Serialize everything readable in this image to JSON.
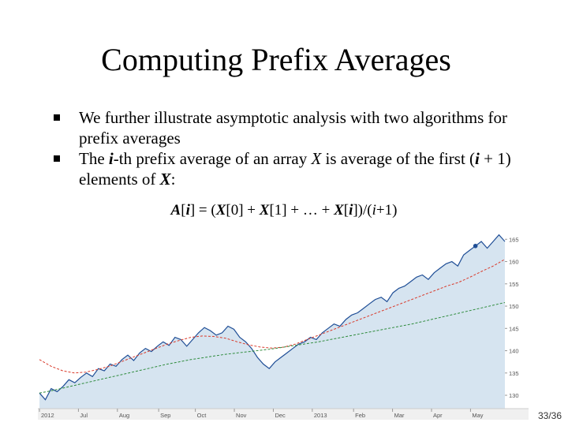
{
  "slide": {
    "title": "Computing Prefix Averages",
    "bullets": [
      {
        "parts": [
          {
            "t": "We further illustrate asymptotic analysis with two algorithms for prefix averages",
            "s": "n"
          }
        ]
      },
      {
        "parts": [
          {
            "t": "The ",
            "s": "n"
          },
          {
            "t": "i",
            "s": "bi"
          },
          {
            "t": "-th prefix average of an array ",
            "s": "n"
          },
          {
            "t": "X",
            "s": "i"
          },
          {
            "t": " is average of the first (",
            "s": "n"
          },
          {
            "t": "i",
            "s": "bi"
          },
          {
            "t": " + 1) elements of ",
            "s": "n"
          },
          {
            "t": "X",
            "s": "bi"
          },
          {
            "t": ":",
            "s": "n"
          }
        ]
      }
    ],
    "formula": [
      {
        "t": "A",
        "s": "bi"
      },
      {
        "t": "[",
        "s": "n"
      },
      {
        "t": "i",
        "s": "bi"
      },
      {
        "t": "] = (",
        "s": "n"
      },
      {
        "t": "X",
        "s": "bi"
      },
      {
        "t": "[0] + ",
        "s": "n"
      },
      {
        "t": "X",
        "s": "bi"
      },
      {
        "t": "[1] + … + ",
        "s": "n"
      },
      {
        "t": "X",
        "s": "bi"
      },
      {
        "t": "[",
        "s": "n"
      },
      {
        "t": "i",
        "s": "bi"
      },
      {
        "t": "])/(",
        "s": "n"
      },
      {
        "t": "i",
        "s": "i"
      },
      {
        "t": "+1)",
        "s": "n"
      }
    ],
    "page_number": "33/36"
  },
  "chart_data": {
    "type": "line",
    "x_labels": [
      "2012",
      "Jul",
      "Aug",
      "Sep",
      "Oct",
      "Nov",
      "Dec",
      "2013",
      "Feb",
      "Mar",
      "Apr",
      "May"
    ],
    "x_label_positions": [
      0,
      17,
      34,
      52,
      68,
      85,
      102,
      119,
      137,
      154,
      171,
      188
    ],
    "xlim": [
      0,
      203
    ],
    "ylim": [
      127,
      167
    ],
    "yticks": [
      130,
      135,
      140,
      145,
      150,
      155,
      160,
      165
    ],
    "grid": false,
    "series": [
      {
        "role": "price",
        "color": "#1f4e96",
        "fill": "#d6e4f0",
        "values": [
          130.5,
          129.0,
          131.5,
          130.8,
          132.0,
          133.5,
          132.8,
          134.0,
          135.0,
          134.2,
          136.0,
          135.5,
          137.0,
          136.5,
          138.0,
          139.0,
          137.8,
          139.5,
          140.5,
          139.8,
          141.0,
          142.0,
          141.2,
          143.0,
          142.5,
          141.0,
          142.5,
          144.0,
          145.2,
          144.5,
          143.5,
          144.0,
          145.5,
          144.8,
          143.0,
          142.0,
          140.5,
          138.5,
          137.0,
          136.0,
          137.5,
          138.5,
          139.5,
          140.5,
          141.5,
          142.0,
          143.0,
          142.5,
          144.0,
          145.0,
          146.0,
          145.5,
          147.0,
          148.0,
          148.5,
          149.5,
          150.5,
          151.5,
          152.0,
          151.0,
          153.0,
          154.0,
          154.5,
          155.5,
          156.5,
          157.0,
          156.0,
          157.5,
          158.5,
          159.5,
          160.0,
          159.0,
          161.5,
          162.5,
          163.5,
          164.5,
          163.0,
          164.5,
          166.0,
          164.5
        ]
      },
      {
        "role": "avg50",
        "color": "#d93a2b",
        "values": [
          138.0,
          136.5,
          135.5,
          135.0,
          135.2,
          135.8,
          136.5,
          137.5,
          138.5,
          139.5,
          140.5,
          141.5,
          142.3,
          143.0,
          143.3,
          143.2,
          142.8,
          142.0,
          141.3,
          140.8,
          140.6,
          140.8,
          141.5,
          142.5,
          143.5,
          144.5,
          145.5,
          146.5,
          147.5,
          148.5,
          149.5,
          150.5,
          151.5,
          152.5,
          153.5,
          154.5,
          155.3,
          156.5,
          157.8,
          159.0,
          160.5
        ]
      },
      {
        "role": "avg200",
        "color": "#2e8b3c",
        "values": [
          130.5,
          131.0,
          131.6,
          132.2,
          132.8,
          133.4,
          134.0,
          134.6,
          135.2,
          135.8,
          136.4,
          137.0,
          137.5,
          138.0,
          138.4,
          138.8,
          139.2,
          139.5,
          139.8,
          140.1,
          140.4,
          140.8,
          141.2,
          141.6,
          142.0,
          142.5,
          143.0,
          143.5,
          144.0,
          144.5,
          145.0,
          145.5,
          146.0,
          146.6,
          147.2,
          147.8,
          148.4,
          149.0,
          149.6,
          150.2,
          150.8
        ]
      }
    ]
  }
}
